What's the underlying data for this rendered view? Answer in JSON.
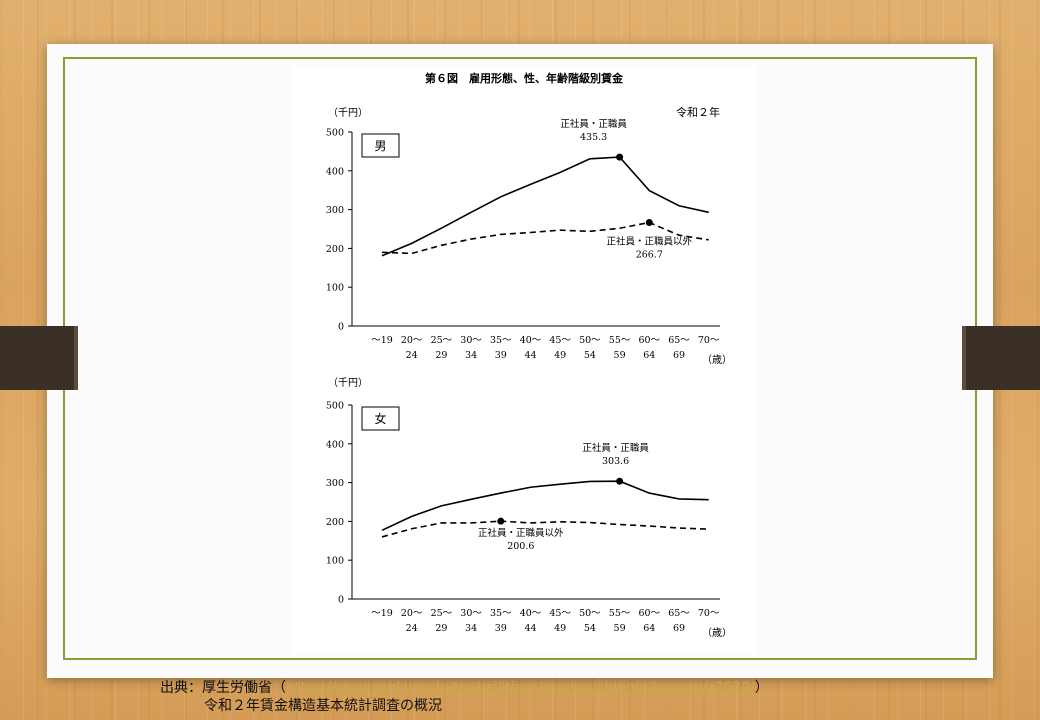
{
  "figure": {
    "title": "第６図　雇用形態、性、年齢階級別賃金",
    "year_label": "令和２年"
  },
  "source": {
    "prefix": "出典：厚生労働省（",
    "url": "https://www.mhlw.go.jp/toukei/itiran/roudou/chingin/kouzou/z2020/",
    "suffix": "）",
    "line2": "令和２年賃金構造基本統計調査の概況"
  },
  "colors": {
    "frame": "#8d9b3a",
    "line": "#000000",
    "link": "#c9a84b"
  },
  "chart_data": [
    {
      "type": "line",
      "panel_label": "男",
      "ylabel": "（千円）",
      "xlabel": "（歳）",
      "ylim": [
        0,
        500
      ],
      "yticks": [
        0,
        100,
        200,
        300,
        400,
        500
      ],
      "categories_top": [
        "～19",
        "20～",
        "25～",
        "30～",
        "35～",
        "40～",
        "45～",
        "50～",
        "55～",
        "60～",
        "65～",
        "70～"
      ],
      "categories_bottom": [
        "",
        "24",
        "29",
        "34",
        "39",
        "44",
        "49",
        "54",
        "59",
        "64",
        "69",
        ""
      ],
      "series": [
        {
          "name": "正社員・正職員",
          "style": "solid",
          "values": [
            181,
            213,
            252,
            293,
            333,
            365,
            396,
            431,
            435.3,
            349,
            310,
            293
          ],
          "marker_index": 8,
          "annotation_value": "435.3"
        },
        {
          "name": "正社員・正職員以外",
          "style": "dashed",
          "values": [
            190,
            187,
            208,
            224,
            236,
            241,
            247,
            244,
            252,
            266.7,
            234,
            222
          ],
          "marker_index": 9,
          "annotation_value": "266.7"
        }
      ]
    },
    {
      "type": "line",
      "panel_label": "女",
      "ylabel": "（千円）",
      "xlabel": "（歳）",
      "ylim": [
        0,
        500
      ],
      "yticks": [
        0,
        100,
        200,
        300,
        400,
        500
      ],
      "categories_top": [
        "～19",
        "20～",
        "25～",
        "30～",
        "35～",
        "40～",
        "45～",
        "50～",
        "55～",
        "60～",
        "65～",
        "70～"
      ],
      "categories_bottom": [
        "",
        "24",
        "29",
        "34",
        "39",
        "44",
        "49",
        "54",
        "59",
        "64",
        "69",
        ""
      ],
      "series": [
        {
          "name": "正社員・正職員",
          "style": "solid",
          "values": [
            177,
            213,
            240,
            257,
            273,
            288,
            296,
            303,
            303.6,
            273,
            258,
            256
          ],
          "marker_index": 8,
          "annotation_value": "303.6"
        },
        {
          "name": "正社員・正職員以外",
          "style": "dashed",
          "values": [
            160,
            181,
            196,
            196,
            200.6,
            196,
            199,
            197,
            192,
            188,
            183,
            180
          ],
          "marker_index": 4,
          "annotation_value": "200.6"
        }
      ]
    }
  ]
}
